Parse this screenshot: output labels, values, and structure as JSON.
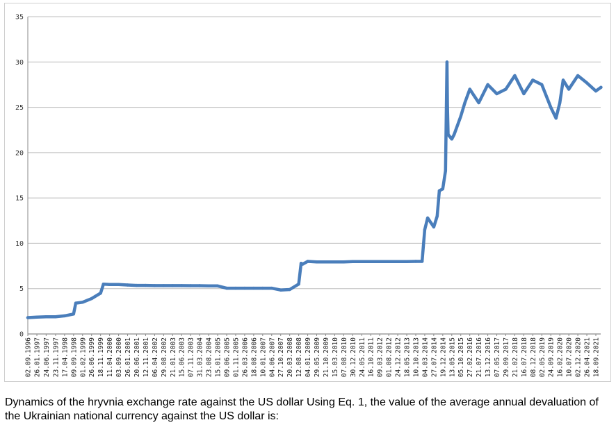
{
  "caption": "Dynamics of the hryvnia exchange rate against the US dollar Using Eq. 1, the value of the average annual devaluation of the Ukrainian national currency against the US dollar is:",
  "chart_data": {
    "type": "line",
    "title": "",
    "xlabel": "",
    "ylabel": "",
    "ylim": [
      0,
      35
    ],
    "yticks": [
      0,
      5,
      10,
      15,
      20,
      25,
      30,
      35
    ],
    "grid": "horizontal",
    "series_color": "#4a7ebb",
    "xtick_labels": [
      "02.09.1996",
      "26.01.1997",
      "24.06.1997",
      "23.11.1997",
      "17.04.1998",
      "09.09.1998",
      "01.02.1999",
      "26.06.1999",
      "18.11.1999",
      "11.04.2000",
      "03.09.2000",
      "26.01.2001",
      "20.06.2001",
      "12.11.2001",
      "06.04.2002",
      "29.08.2002",
      "21.01.2003",
      "15.06.2003",
      "07.11.2003",
      "31.03.2004",
      "23.08.2004",
      "15.01.2005",
      "09.06.2005",
      "01.11.2005",
      "26.03.2006",
      "18.08.2006",
      "10.01.2007",
      "04.06.2007",
      "27.10.2007",
      "20.03.2008",
      "12.08.2008",
      "04.01.2009",
      "29.05.2009",
      "21.10.2009",
      "15.03.2010",
      "07.08.2010",
      "30.12.2010",
      "24.05.2011",
      "16.10.2011",
      "09.03.2012",
      "01.08.2012",
      "24.12.2012",
      "18.05.2013",
      "10.10.2013",
      "04.03.2014",
      "27.07.2014",
      "19.12.2014",
      "13.05.2015",
      "05.10.2015",
      "27.02.2016",
      "21.07.2016",
      "13.12.2016",
      "07.05.2017",
      "29.09.2017",
      "21.02.2018",
      "16.07.2018",
      "08.12.2018",
      "02.05.2019",
      "24.09.2019",
      "16.02.2020",
      "10.07.2020",
      "02.12.2020",
      "26.04.2021",
      "18.09.2021"
    ],
    "series": [
      {
        "x": [
          "02.09.1996",
          "26.01.1997",
          "24.06.1997",
          "23.11.1997",
          "17.04.1998",
          "09.09.1998",
          "15.10.1998",
          "01.02.1999",
          "26.06.1999",
          "18.11.1999",
          "03.01.2000",
          "11.04.2000",
          "03.09.2000",
          "26.01.2001",
          "20.06.2001",
          "12.11.2001",
          "06.04.2002",
          "29.08.2002",
          "21.01.2003",
          "15.06.2003",
          "07.11.2003",
          "31.03.2004",
          "23.08.2004",
          "15.01.2005",
          "09.06.2005",
          "01.11.2005",
          "26.03.2006",
          "18.08.2006",
          "10.01.2007",
          "04.06.2007",
          "27.10.2007",
          "20.03.2008",
          "12.08.2008",
          "20.09.2008",
          "15.10.2008",
          "10.11.2008",
          "04.01.2009",
          "29.05.2009",
          "21.10.2009",
          "15.03.2010",
          "07.08.2010",
          "30.12.2010",
          "24.05.2011",
          "16.10.2011",
          "09.03.2012",
          "01.08.2012",
          "24.12.2012",
          "18.05.2013",
          "10.10.2013",
          "20.01.2014",
          "04.03.2014",
          "20.04.2014",
          "27.07.2014",
          "20.09.2014",
          "25.10.2014",
          "19.12.2014",
          "01.02.2015",
          "25.02.2015",
          "05.03.2015",
          "15.03.2015",
          "13.05.2015",
          "20.06.2015",
          "05.10.2015",
          "10.12.2015",
          "27.02.2016",
          "21.07.2016",
          "13.12.2016",
          "07.05.2017",
          "29.09.2017",
          "21.02.2018",
          "16.07.2018",
          "08.12.2018",
          "02.05.2019",
          "24.09.2019",
          "16.12.2019",
          "16.02.2020",
          "10.04.2020",
          "10.07.2020",
          "02.12.2020",
          "26.04.2021",
          "18.09.2021",
          "10.12.2021"
        ],
        "values": [
          1.8,
          1.85,
          1.9,
          1.9,
          2.0,
          2.2,
          3.4,
          3.5,
          3.9,
          4.5,
          5.5,
          5.45,
          5.45,
          5.4,
          5.35,
          5.35,
          5.33,
          5.33,
          5.33,
          5.33,
          5.32,
          5.32,
          5.3,
          5.3,
          5.05,
          5.05,
          5.05,
          5.05,
          5.05,
          5.05,
          4.85,
          4.9,
          5.5,
          7.8,
          7.7,
          7.8,
          8.0,
          7.95,
          7.95,
          7.95,
          7.95,
          7.98,
          7.99,
          7.99,
          7.99,
          7.99,
          7.99,
          7.99,
          8.0,
          8.0,
          11.5,
          12.8,
          11.8,
          13.0,
          15.8,
          16.0,
          18.0,
          30.0,
          25.0,
          22.0,
          21.5,
          22.0,
          24.0,
          25.5,
          27.0,
          25.5,
          27.5,
          26.5,
          27.0,
          28.5,
          26.5,
          28.0,
          27.5,
          25.0,
          23.8,
          25.5,
          28.0,
          27.0,
          28.5,
          27.7,
          26.8,
          27.2
        ]
      }
    ]
  }
}
